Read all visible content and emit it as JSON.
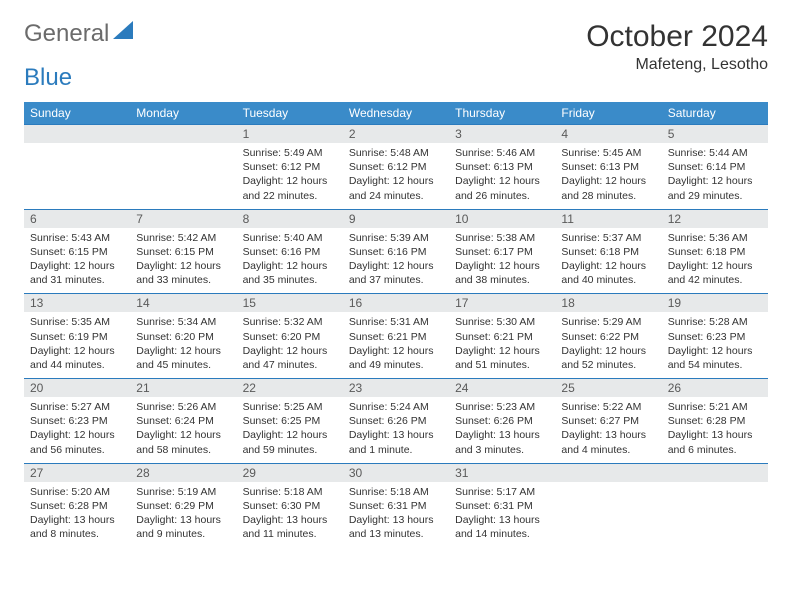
{
  "brand": {
    "part1": "General",
    "part2": "Blue"
  },
  "title": "October 2024",
  "location": "Mafeteng, Lesotho",
  "colors": {
    "header_bg": "#3a8bc9",
    "header_text": "#ffffff",
    "daynum_bg": "#e7e9ea",
    "border": "#2b7bbd",
    "logo_gray": "#6b6b6b",
    "logo_blue": "#2b7bbd"
  },
  "weekdays": [
    "Sunday",
    "Monday",
    "Tuesday",
    "Wednesday",
    "Thursday",
    "Friday",
    "Saturday"
  ],
  "weeks": [
    [
      null,
      null,
      {
        "n": "1",
        "sr": "Sunrise: 5:49 AM",
        "ss": "Sunset: 6:12 PM",
        "dl": "Daylight: 12 hours and 22 minutes."
      },
      {
        "n": "2",
        "sr": "Sunrise: 5:48 AM",
        "ss": "Sunset: 6:12 PM",
        "dl": "Daylight: 12 hours and 24 minutes."
      },
      {
        "n": "3",
        "sr": "Sunrise: 5:46 AM",
        "ss": "Sunset: 6:13 PM",
        "dl": "Daylight: 12 hours and 26 minutes."
      },
      {
        "n": "4",
        "sr": "Sunrise: 5:45 AM",
        "ss": "Sunset: 6:13 PM",
        "dl": "Daylight: 12 hours and 28 minutes."
      },
      {
        "n": "5",
        "sr": "Sunrise: 5:44 AM",
        "ss": "Sunset: 6:14 PM",
        "dl": "Daylight: 12 hours and 29 minutes."
      }
    ],
    [
      {
        "n": "6",
        "sr": "Sunrise: 5:43 AM",
        "ss": "Sunset: 6:15 PM",
        "dl": "Daylight: 12 hours and 31 minutes."
      },
      {
        "n": "7",
        "sr": "Sunrise: 5:42 AM",
        "ss": "Sunset: 6:15 PM",
        "dl": "Daylight: 12 hours and 33 minutes."
      },
      {
        "n": "8",
        "sr": "Sunrise: 5:40 AM",
        "ss": "Sunset: 6:16 PM",
        "dl": "Daylight: 12 hours and 35 minutes."
      },
      {
        "n": "9",
        "sr": "Sunrise: 5:39 AM",
        "ss": "Sunset: 6:16 PM",
        "dl": "Daylight: 12 hours and 37 minutes."
      },
      {
        "n": "10",
        "sr": "Sunrise: 5:38 AM",
        "ss": "Sunset: 6:17 PM",
        "dl": "Daylight: 12 hours and 38 minutes."
      },
      {
        "n": "11",
        "sr": "Sunrise: 5:37 AM",
        "ss": "Sunset: 6:18 PM",
        "dl": "Daylight: 12 hours and 40 minutes."
      },
      {
        "n": "12",
        "sr": "Sunrise: 5:36 AM",
        "ss": "Sunset: 6:18 PM",
        "dl": "Daylight: 12 hours and 42 minutes."
      }
    ],
    [
      {
        "n": "13",
        "sr": "Sunrise: 5:35 AM",
        "ss": "Sunset: 6:19 PM",
        "dl": "Daylight: 12 hours and 44 minutes."
      },
      {
        "n": "14",
        "sr": "Sunrise: 5:34 AM",
        "ss": "Sunset: 6:20 PM",
        "dl": "Daylight: 12 hours and 45 minutes."
      },
      {
        "n": "15",
        "sr": "Sunrise: 5:32 AM",
        "ss": "Sunset: 6:20 PM",
        "dl": "Daylight: 12 hours and 47 minutes."
      },
      {
        "n": "16",
        "sr": "Sunrise: 5:31 AM",
        "ss": "Sunset: 6:21 PM",
        "dl": "Daylight: 12 hours and 49 minutes."
      },
      {
        "n": "17",
        "sr": "Sunrise: 5:30 AM",
        "ss": "Sunset: 6:21 PM",
        "dl": "Daylight: 12 hours and 51 minutes."
      },
      {
        "n": "18",
        "sr": "Sunrise: 5:29 AM",
        "ss": "Sunset: 6:22 PM",
        "dl": "Daylight: 12 hours and 52 minutes."
      },
      {
        "n": "19",
        "sr": "Sunrise: 5:28 AM",
        "ss": "Sunset: 6:23 PM",
        "dl": "Daylight: 12 hours and 54 minutes."
      }
    ],
    [
      {
        "n": "20",
        "sr": "Sunrise: 5:27 AM",
        "ss": "Sunset: 6:23 PM",
        "dl": "Daylight: 12 hours and 56 minutes."
      },
      {
        "n": "21",
        "sr": "Sunrise: 5:26 AM",
        "ss": "Sunset: 6:24 PM",
        "dl": "Daylight: 12 hours and 58 minutes."
      },
      {
        "n": "22",
        "sr": "Sunrise: 5:25 AM",
        "ss": "Sunset: 6:25 PM",
        "dl": "Daylight: 12 hours and 59 minutes."
      },
      {
        "n": "23",
        "sr": "Sunrise: 5:24 AM",
        "ss": "Sunset: 6:26 PM",
        "dl": "Daylight: 13 hours and 1 minute."
      },
      {
        "n": "24",
        "sr": "Sunrise: 5:23 AM",
        "ss": "Sunset: 6:26 PM",
        "dl": "Daylight: 13 hours and 3 minutes."
      },
      {
        "n": "25",
        "sr": "Sunrise: 5:22 AM",
        "ss": "Sunset: 6:27 PM",
        "dl": "Daylight: 13 hours and 4 minutes."
      },
      {
        "n": "26",
        "sr": "Sunrise: 5:21 AM",
        "ss": "Sunset: 6:28 PM",
        "dl": "Daylight: 13 hours and 6 minutes."
      }
    ],
    [
      {
        "n": "27",
        "sr": "Sunrise: 5:20 AM",
        "ss": "Sunset: 6:28 PM",
        "dl": "Daylight: 13 hours and 8 minutes."
      },
      {
        "n": "28",
        "sr": "Sunrise: 5:19 AM",
        "ss": "Sunset: 6:29 PM",
        "dl": "Daylight: 13 hours and 9 minutes."
      },
      {
        "n": "29",
        "sr": "Sunrise: 5:18 AM",
        "ss": "Sunset: 6:30 PM",
        "dl": "Daylight: 13 hours and 11 minutes."
      },
      {
        "n": "30",
        "sr": "Sunrise: 5:18 AM",
        "ss": "Sunset: 6:31 PM",
        "dl": "Daylight: 13 hours and 13 minutes."
      },
      {
        "n": "31",
        "sr": "Sunrise: 5:17 AM",
        "ss": "Sunset: 6:31 PM",
        "dl": "Daylight: 13 hours and 14 minutes."
      },
      null,
      null
    ]
  ]
}
